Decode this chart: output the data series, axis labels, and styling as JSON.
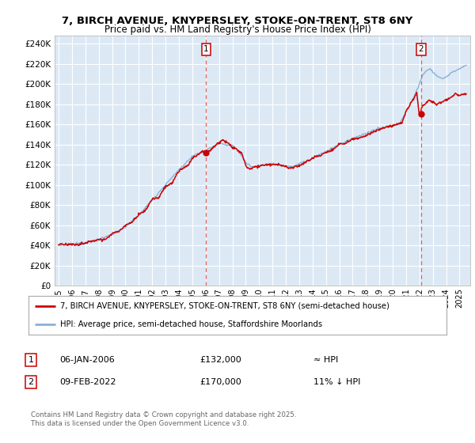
{
  "title_line1": "7, BIRCH AVENUE, KNYPERSLEY, STOKE-ON-TRENT, ST8 6NY",
  "title_line2": "Price paid vs. HM Land Registry's House Price Index (HPI)",
  "ylabel_ticks": [
    "£0",
    "£20K",
    "£40K",
    "£60K",
    "£80K",
    "£100K",
    "£120K",
    "£140K",
    "£160K",
    "£180K",
    "£200K",
    "£220K",
    "£240K"
  ],
  "ytick_vals": [
    0,
    20000,
    40000,
    60000,
    80000,
    100000,
    120000,
    140000,
    160000,
    180000,
    200000,
    220000,
    240000
  ],
  "xlim_start": 1994.7,
  "xlim_end": 2025.8,
  "ylim": [
    0,
    248000
  ],
  "fig_bg_color": "#ffffff",
  "plot_bg_color": "#dce9f5",
  "grid_color": "#ffffff",
  "hpi_line_color": "#8ab0d8",
  "price_line_color": "#cc0000",
  "dashed_line_color": "#dd6666",
  "marker1_x": 2006.04,
  "marker2_x": 2022.12,
  "legend_label1": "7, BIRCH AVENUE, KNYPERSLEY, STOKE-ON-TRENT, ST8 6NY (semi-detached house)",
  "legend_label2": "HPI: Average price, semi-detached house, Staffordshire Moorlands",
  "table_row1": [
    "1",
    "06-JAN-2006",
    "£132,000",
    "≈ HPI"
  ],
  "table_row2": [
    "2",
    "09-FEB-2022",
    "£170,000",
    "11% ↓ HPI"
  ],
  "footer": "Contains HM Land Registry data © Crown copyright and database right 2025.\nThis data is licensed under the Open Government Licence v3.0.",
  "xtick_years": [
    1995,
    1996,
    1997,
    1998,
    1999,
    2000,
    2001,
    2002,
    2003,
    2004,
    2005,
    2006,
    2007,
    2008,
    2009,
    2010,
    2011,
    2012,
    2013,
    2014,
    2015,
    2016,
    2017,
    2018,
    2019,
    2020,
    2021,
    2022,
    2023,
    2024,
    2025
  ]
}
